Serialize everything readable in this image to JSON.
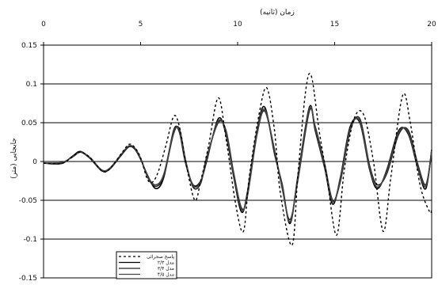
{
  "chart_data": {
    "type": "line",
    "xlabel": "زمان (ثانیه)",
    "ylabel": "جابجایی (متر)",
    "xlim": [
      0,
      20
    ],
    "ylim": [
      -0.15,
      0.15
    ],
    "x_axis_position": "top",
    "x_ticks": [
      "0",
      "5",
      "10",
      "15",
      "20"
    ],
    "y_ticks": [
      "0.15",
      "0.1",
      "0.05",
      "0",
      "-0.05",
      "-0.1",
      "-0.15"
    ],
    "grid": "horizontal",
    "legend_position": "bottom-left",
    "series": [
      {
        "name": "پاسخ صحرائی",
        "style": "dashed",
        "color": "#000000",
        "points": [
          [
            0,
            -0.002
          ],
          [
            0.5,
            -0.003
          ],
          [
            1,
            -0.002
          ],
          [
            1.5,
            0.006
          ],
          [
            1.9,
            0.012
          ],
          [
            2.4,
            0.005
          ],
          [
            3,
            -0.012
          ],
          [
            3.4,
            -0.01
          ],
          [
            4,
            0.01
          ],
          [
            4.4,
            0.022
          ],
          [
            4.7,
            0.018
          ],
          [
            5,
            0.005
          ],
          [
            5.4,
            -0.025
          ],
          [
            5.8,
            -0.02
          ],
          [
            6.3,
            0.02
          ],
          [
            6.7,
            0.058
          ],
          [
            7,
            0.045
          ],
          [
            7.4,
            -0.01
          ],
          [
            7.8,
            -0.05
          ],
          [
            8.1,
            -0.025
          ],
          [
            8.5,
            0.02
          ],
          [
            9,
            0.082
          ],
          [
            9.4,
            0.03
          ],
          [
            9.9,
            -0.055
          ],
          [
            10.3,
            -0.09
          ],
          [
            10.6,
            -0.02
          ],
          [
            11.1,
            0.06
          ],
          [
            11.5,
            0.095
          ],
          [
            11.9,
            0.04
          ],
          [
            12.2,
            -0.04
          ],
          [
            12.8,
            -0.108
          ],
          [
            13.1,
            -0.02
          ],
          [
            13.5,
            0.09
          ],
          [
            13.8,
            0.11
          ],
          [
            14.2,
            0.04
          ],
          [
            14.6,
            -0.02
          ],
          [
            15.1,
            -0.095
          ],
          [
            15.5,
            -0.01
          ],
          [
            16,
            0.055
          ],
          [
            16.5,
            0.06
          ],
          [
            17,
            0.0
          ],
          [
            17.5,
            -0.09
          ],
          [
            17.9,
            -0.02
          ],
          [
            18.5,
            0.085
          ],
          [
            18.9,
            0.05
          ],
          [
            19.4,
            -0.03
          ],
          [
            19.9,
            -0.065
          ],
          [
            20,
            -0.06
          ]
        ]
      },
      {
        "name": "۲/۳ مدل",
        "style": "solid",
        "color": "#000000",
        "points": [
          [
            0,
            -0.002
          ],
          [
            0.5,
            -0.003
          ],
          [
            1,
            -0.002
          ],
          [
            1.5,
            0.007
          ],
          [
            1.9,
            0.013
          ],
          [
            2.4,
            0.004
          ],
          [
            3,
            -0.012
          ],
          [
            3.4,
            -0.01
          ],
          [
            4,
            0.008
          ],
          [
            4.4,
            0.019
          ],
          [
            4.7,
            0.016
          ],
          [
            5,
            0.003
          ],
          [
            5.4,
            -0.02
          ],
          [
            5.8,
            -0.035
          ],
          [
            6.2,
            -0.02
          ],
          [
            6.7,
            0.04
          ],
          [
            7,
            0.038
          ],
          [
            7.3,
            0.0
          ],
          [
            7.7,
            -0.03
          ],
          [
            8.1,
            -0.025
          ],
          [
            8.4,
            0.0
          ],
          [
            9,
            0.055
          ],
          [
            9.4,
            0.035
          ],
          [
            9.8,
            -0.02
          ],
          [
            10.2,
            -0.065
          ],
          [
            10.5,
            -0.04
          ],
          [
            11,
            0.04
          ],
          [
            11.4,
            0.07
          ],
          [
            11.9,
            0.01
          ],
          [
            12.3,
            -0.03
          ],
          [
            12.7,
            -0.08
          ],
          [
            13.1,
            -0.02
          ],
          [
            13.7,
            0.07
          ],
          [
            14,
            0.04
          ],
          [
            14.5,
            -0.01
          ],
          [
            14.9,
            -0.055
          ],
          [
            15.3,
            -0.02
          ],
          [
            15.8,
            0.045
          ],
          [
            16.3,
            0.05
          ],
          [
            16.8,
            -0.01
          ],
          [
            17.2,
            -0.035
          ],
          [
            17.7,
            -0.01
          ],
          [
            18.3,
            0.04
          ],
          [
            18.8,
            0.035
          ],
          [
            19.3,
            -0.01
          ],
          [
            19.7,
            -0.035
          ],
          [
            20,
            0.015
          ]
        ]
      },
      {
        "name": "۳/۴ مدل",
        "style": "solid",
        "color": "#222222",
        "points": [
          [
            0,
            -0.002
          ],
          [
            0.5,
            -0.002
          ],
          [
            1,
            -0.001
          ],
          [
            1.5,
            0.006
          ],
          [
            1.9,
            0.012
          ],
          [
            2.4,
            0.004
          ],
          [
            3,
            -0.011
          ],
          [
            3.4,
            -0.009
          ],
          [
            4,
            0.009
          ],
          [
            4.4,
            0.02
          ],
          [
            4.7,
            0.017
          ],
          [
            5,
            0.004
          ],
          [
            5.4,
            -0.022
          ],
          [
            5.8,
            -0.032
          ],
          [
            6.2,
            -0.018
          ],
          [
            6.7,
            0.036
          ],
          [
            7,
            0.042
          ],
          [
            7.3,
            0.004
          ],
          [
            7.7,
            -0.033
          ],
          [
            8.1,
            -0.028
          ],
          [
            8.4,
            0.005
          ],
          [
            9,
            0.05
          ],
          [
            9.4,
            0.04
          ],
          [
            9.8,
            -0.015
          ],
          [
            10.2,
            -0.06
          ],
          [
            10.5,
            -0.045
          ],
          [
            11,
            0.035
          ],
          [
            11.4,
            0.065
          ],
          [
            11.9,
            0.015
          ],
          [
            12.3,
            -0.035
          ],
          [
            12.7,
            -0.075
          ],
          [
            13.1,
            -0.025
          ],
          [
            13.7,
            0.065
          ],
          [
            14,
            0.045
          ],
          [
            14.5,
            -0.005
          ],
          [
            14.9,
            -0.05
          ],
          [
            15.3,
            -0.025
          ],
          [
            15.8,
            0.04
          ],
          [
            16.3,
            0.055
          ],
          [
            16.8,
            -0.005
          ],
          [
            17.2,
            -0.03
          ],
          [
            17.7,
            -0.015
          ],
          [
            18.3,
            0.035
          ],
          [
            18.8,
            0.04
          ],
          [
            19.3,
            -0.005
          ],
          [
            19.7,
            -0.03
          ],
          [
            20,
            0.012
          ]
        ]
      },
      {
        "name": "۴/۵ مدل",
        "style": "solid",
        "color": "#444444",
        "points": [
          [
            0,
            -0.002
          ],
          [
            0.5,
            -0.002
          ],
          [
            1,
            -0.001
          ],
          [
            1.5,
            0.006
          ],
          [
            1.9,
            0.012
          ],
          [
            2.4,
            0.005
          ],
          [
            3,
            -0.011
          ],
          [
            3.4,
            -0.009
          ],
          [
            4,
            0.009
          ],
          [
            4.4,
            0.02
          ],
          [
            4.7,
            0.017
          ],
          [
            5,
            0.004
          ],
          [
            5.4,
            -0.021
          ],
          [
            5.8,
            -0.03
          ],
          [
            6.2,
            -0.016
          ],
          [
            6.7,
            0.038
          ],
          [
            7,
            0.04
          ],
          [
            7.3,
            0.002
          ],
          [
            7.7,
            -0.031
          ],
          [
            8.1,
            -0.026
          ],
          [
            8.4,
            0.003
          ],
          [
            9,
            0.052
          ],
          [
            9.4,
            0.038
          ],
          [
            9.8,
            -0.017
          ],
          [
            10.2,
            -0.062
          ],
          [
            10.5,
            -0.043
          ],
          [
            11,
            0.037
          ],
          [
            11.4,
            0.067
          ],
          [
            11.9,
            0.013
          ],
          [
            12.3,
            -0.032
          ],
          [
            12.7,
            -0.078
          ],
          [
            13.1,
            -0.022
          ],
          [
            13.7,
            0.068
          ],
          [
            14,
            0.043
          ],
          [
            14.5,
            -0.008
          ],
          [
            14.9,
            -0.052
          ],
          [
            15.3,
            -0.022
          ],
          [
            15.8,
            0.042
          ],
          [
            16.3,
            0.052
          ],
          [
            16.8,
            -0.008
          ],
          [
            17.2,
            -0.033
          ],
          [
            17.7,
            -0.012
          ],
          [
            18.3,
            0.038
          ],
          [
            18.8,
            0.037
          ],
          [
            19.3,
            -0.008
          ],
          [
            19.7,
            -0.032
          ],
          [
            20,
            0.014
          ]
        ]
      }
    ]
  }
}
